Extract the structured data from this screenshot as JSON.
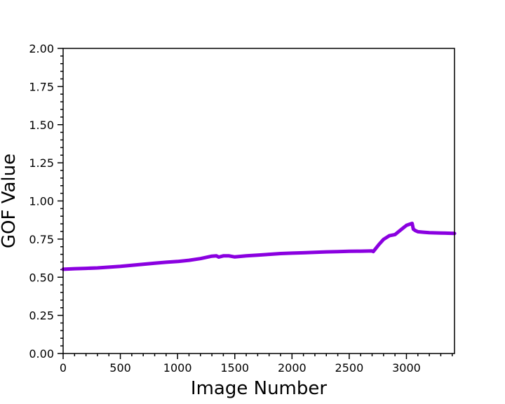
{
  "chart_data": {
    "type": "line",
    "title": "",
    "xlabel": "Image Number",
    "ylabel": "GOF Value",
    "xlim": [
      0,
      3420
    ],
    "ylim": [
      0.0,
      2.0
    ],
    "x_ticks": [
      0,
      500,
      1000,
      1500,
      2000,
      2500,
      3000
    ],
    "x_tick_labels": [
      "0",
      "500",
      "1000",
      "1500",
      "2000",
      "2500",
      "3000"
    ],
    "y_ticks": [
      0.0,
      0.25,
      0.5,
      0.75,
      1.0,
      1.25,
      1.5,
      1.75,
      2.0
    ],
    "y_tick_labels": [
      "0.00",
      "0.25",
      "0.50",
      "0.75",
      "1.00",
      "1.25",
      "1.50",
      "1.75",
      "2.00"
    ],
    "grid": false,
    "legend": "none",
    "series": [
      {
        "color": "#8a00e0",
        "x": [
          0,
          100,
          200,
          300,
          400,
          500,
          600,
          700,
          800,
          900,
          1000,
          1100,
          1200,
          1300,
          1340,
          1360,
          1400,
          1450,
          1500,
          1600,
          1700,
          1800,
          1900,
          2000,
          2100,
          2200,
          2300,
          2400,
          2500,
          2600,
          2700,
          2710,
          2760,
          2800,
          2850,
          2900,
          2950,
          3000,
          3050,
          3060,
          3080,
          3100,
          3150,
          3200,
          3300,
          3420
        ],
        "y": [
          0.552,
          0.556,
          0.558,
          0.561,
          0.566,
          0.571,
          0.578,
          0.585,
          0.592,
          0.598,
          0.603,
          0.611,
          0.622,
          0.638,
          0.64,
          0.632,
          0.64,
          0.64,
          0.633,
          0.64,
          0.645,
          0.65,
          0.655,
          0.658,
          0.66,
          0.663,
          0.666,
          0.668,
          0.67,
          0.671,
          0.672,
          0.668,
          0.715,
          0.748,
          0.772,
          0.78,
          0.81,
          0.84,
          0.853,
          0.815,
          0.805,
          0.798,
          0.795,
          0.792,
          0.79,
          0.787
        ]
      }
    ]
  }
}
